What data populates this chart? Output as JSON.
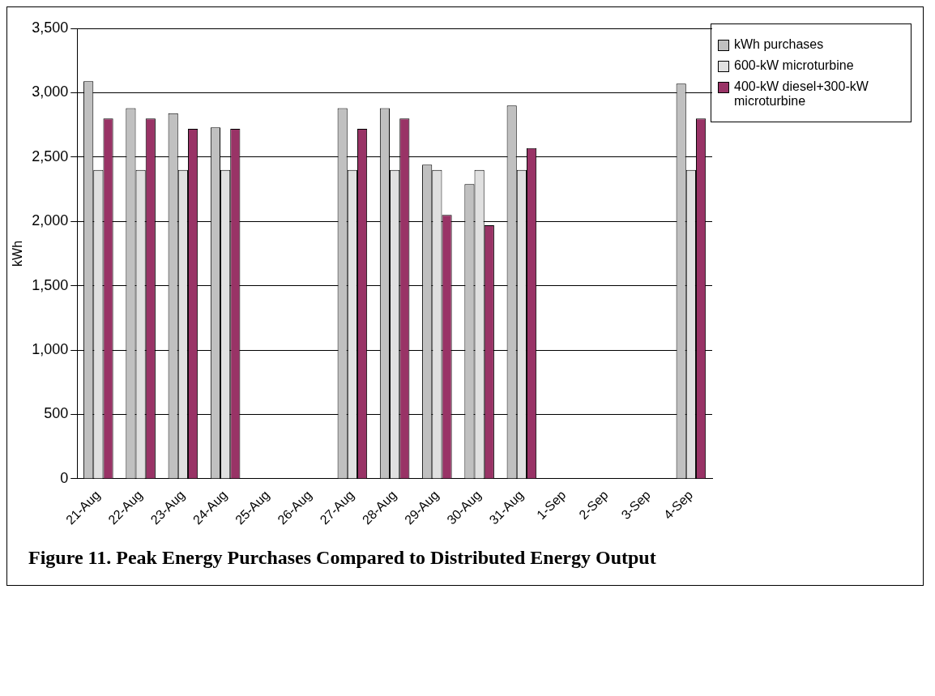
{
  "chart_data": {
    "type": "bar",
    "title": "Figure 11.  Peak Energy Purchases Compared to Distributed Energy Output",
    "ylabel": "kWh",
    "categories": [
      "21-Aug",
      "22-Aug",
      "23-Aug",
      "24-Aug",
      "25-Aug",
      "26-Aug",
      "27-Aug",
      "28-Aug",
      "29-Aug",
      "30-Aug",
      "31-Aug",
      "1-Sep",
      "2-Sep",
      "3-Sep",
      "4-Sep"
    ],
    "series": [
      {
        "name": "kWh purchases",
        "color": "#c0c0c0",
        "values": [
          3090,
          2880,
          2840,
          2730,
          null,
          null,
          2880,
          2880,
          2440,
          2290,
          2900,
          null,
          null,
          null,
          3070
        ]
      },
      {
        "name": "600-kW microturbine",
        "color": "#e0e0e0",
        "values": [
          2400,
          2400,
          2400,
          2400,
          null,
          null,
          2400,
          2400,
          2400,
          2400,
          2400,
          null,
          null,
          null,
          2400
        ]
      },
      {
        "name": "400-kW diesel+300-kW microturbine",
        "color": "#993366",
        "values": [
          2800,
          2800,
          2720,
          2720,
          null,
          null,
          2720,
          2800,
          2050,
          1970,
          2570,
          null,
          null,
          null,
          2800
        ]
      }
    ],
    "ylim": [
      0,
      3500
    ],
    "yticks": [
      0,
      500,
      {
        "value": 1000,
        "label": "1,000"
      },
      {
        "value": 1500,
        "label": "1,500"
      },
      {
        "value": 2000,
        "label": "2,000"
      },
      {
        "value": 2500,
        "label": "2,500"
      },
      {
        "value": 3000,
        "label": "3,000"
      },
      {
        "value": 3500,
        "label": "3,500"
      }
    ],
    "grid": "y",
    "legend": "top right"
  }
}
